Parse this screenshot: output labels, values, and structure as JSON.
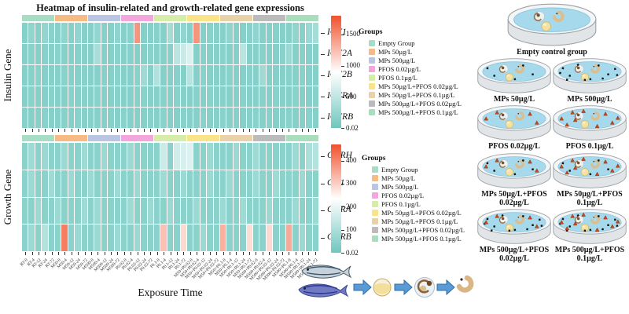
{
  "title": "Heatmap of insulin-related and growth-related gene expressions",
  "xlabel": "Exposure Time",
  "colors": {
    "heat_low": "#6FC7BF",
    "heat_mid": "#FFFFFF",
    "heat_high": "#F0512C",
    "tick": "#333333",
    "water": "#A6D9EB",
    "dish_rim": "#F4F5F6",
    "dish_base": "#E2E5E7",
    "dish_stroke": "#9AA0A4",
    "mp_particle": "#151515",
    "pfos_particle": "#C2481E",
    "pfos_edge": "#8A2D0E",
    "arrow": "#5B9BD5",
    "arrow_edge": "#2E6DA8"
  },
  "groups": {
    "heading": "Groups",
    "items": [
      {
        "label": "Empty Group",
        "color": "#A8DCC4"
      },
      {
        "label": "MPs 50µg/L",
        "color": "#F8BA84"
      },
      {
        "label": "MPs 500µg/L",
        "color": "#B9C5E2"
      },
      {
        "label": "PFOS 0.02µg/L",
        "color": "#F2A6DC"
      },
      {
        "label": "PFOS 0.1µg/L",
        "color": "#D6ECA9"
      },
      {
        "label": "MPs 50µg/L+PFOS 0.02µg/L",
        "color": "#FBE38A"
      },
      {
        "label": "MPs 50µg/L+PFOS 0.1µg/L",
        "color": "#E9D2A9"
      },
      {
        "label": "MPs 500µg/L+PFOS 0.02µg/L",
        "color": "#BBBBBB"
      },
      {
        "label": "MPs 500µg/L+PFOS 0.1µg/L",
        "color": "#A9DDBE"
      }
    ]
  },
  "chart_data": [
    {
      "type": "heatmap",
      "axis_label": "Insulin Gene",
      "rows": [
        "IGF1",
        "IGF2A",
        "IGF2B",
        "IGFRA",
        "IGFRB"
      ],
      "columns": [
        "RT-0",
        "RT-4",
        "RT-12",
        "RT-24",
        "RT-72",
        "M50-0",
        "M50-4",
        "M50-12",
        "M50-24",
        "M50-72",
        "M500-0",
        "M500-4",
        "M500-12",
        "M500-24",
        "M500-72",
        "P0.02-0",
        "P0.02-4",
        "P0.02-12",
        "P0.02-24",
        "P0.02-72",
        "P0.1-0",
        "P0.1-4",
        "P0.1-12",
        "P0.1-24",
        "P0.1-72",
        "M50+P0.02-0",
        "M50+P0.02-4",
        "M50+P0.02-12",
        "M50+P0.02-24",
        "M50+P0.02-72",
        "M50+P0.1-0",
        "M50+P0.1-4",
        "M50+P0.1-12",
        "M50+P0.1-24",
        "M50+P0.1-72",
        "M500+P0.02-0",
        "M500+P0.02-4",
        "M500+P0.02-12",
        "M500+P0.02-24",
        "M500+P0.02-72",
        "M500+P0.1-0",
        "M500+P0.1-4",
        "M500+P0.1-12",
        "M500+P0.1-24",
        "M500+P0.1-72"
      ],
      "colorbar": {
        "ticks": [
          "1500",
          "1000",
          "500",
          "0.02"
        ],
        "min": 0.02,
        "mid": 900,
        "max": 1800
      },
      "values": [
        [
          140,
          215,
          150,
          230,
          160,
          150,
          205,
          145,
          220,
          150,
          148,
          228,
          155,
          150,
          212,
          150,
          162,
          1450,
          142,
          150,
          156,
          148,
          330,
          152,
          216,
          150,
          1450,
          152,
          162,
          146,
          150,
          214,
          150,
          146,
          156,
          210,
          150,
          146,
          154,
          150,
          146,
          212,
          156,
          280,
          345
        ],
        [
          150,
          162,
          146,
          156,
          150,
          160,
          150,
          146,
          156,
          150,
          150,
          355,
          150,
          146,
          162,
          150,
          156,
          146,
          150,
          162,
          150,
          146,
          156,
          480,
          560,
          680,
          150,
          156,
          146,
          150,
          162,
          150,
          146,
          470,
          150,
          150,
          156,
          150,
          146,
          162,
          285,
          150,
          156,
          146,
          150
        ],
        [
          150,
          156,
          162,
          150,
          146,
          150,
          162,
          150,
          146,
          156,
          150,
          146,
          156,
          150,
          162,
          146,
          150,
          162,
          310,
          150,
          420,
          150,
          146,
          156,
          150,
          455,
          150,
          162,
          150,
          146,
          150,
          162,
          146,
          150,
          156,
          150,
          310,
          150,
          146,
          150,
          156,
          150,
          162,
          146,
          150
        ],
        [
          150,
          162,
          150,
          146,
          156,
          150,
          146,
          162,
          150,
          156,
          150,
          162,
          146,
          150,
          156,
          150,
          146,
          156,
          162,
          150,
          146,
          156,
          150,
          162,
          146,
          150,
          156,
          146,
          162,
          150,
          156,
          150,
          146,
          162,
          150,
          146,
          156,
          150,
          162,
          146,
          150,
          162,
          150,
          146,
          156
        ],
        [
          156,
          146,
          150,
          162,
          150,
          146,
          156,
          150,
          162,
          146,
          156,
          150,
          146,
          156,
          150,
          162,
          150,
          146,
          150,
          156,
          150,
          162,
          146,
          150,
          156,
          146,
          150,
          162,
          150,
          146,
          162,
          146,
          156,
          150,
          146,
          162,
          150,
          156,
          146,
          150,
          156,
          150,
          146,
          162,
          150
        ]
      ]
    },
    {
      "type": "heatmap",
      "axis_label": "Growth Gene",
      "rows": [
        "GHRH",
        "GH1",
        "GHRA",
        "GHRB"
      ],
      "columns": [
        "RT-0",
        "RT-4",
        "RT-12",
        "RT-24",
        "RT-72",
        "M50-0",
        "M50-4",
        "M50-12",
        "M50-24",
        "M50-72",
        "M500-0",
        "M500-4",
        "M500-12",
        "M500-24",
        "M500-72",
        "P0.02-0",
        "P0.02-4",
        "P0.02-12",
        "P0.02-24",
        "P0.02-72",
        "P0.1-0",
        "P0.1-4",
        "P0.1-12",
        "P0.1-24",
        "P0.1-72",
        "M50+P0.02-0",
        "M50+P0.02-4",
        "M50+P0.02-12",
        "M50+P0.02-24",
        "M50+P0.02-72",
        "M50+P0.1-0",
        "M50+P0.1-4",
        "M50+P0.1-12",
        "M50+P0.1-24",
        "M50+P0.1-72",
        "M500+P0.02-0",
        "M500+P0.02-4",
        "M500+P0.02-12",
        "M500+P0.02-24",
        "M500+P0.02-72",
        "M500+P0.1-0",
        "M500+P0.1-4",
        "M500+P0.1-12",
        "M500+P0.1-24",
        "M500+P0.1-72"
      ],
      "colorbar": {
        "ticks": [
          "400",
          "300",
          "200",
          "100",
          "0.02"
        ],
        "min": 0.02,
        "mid": 235,
        "max": 470
      },
      "values": [
        [
          45,
          78,
          48,
          75,
          45,
          48,
          75,
          45,
          48,
          78,
          45,
          48,
          75,
          45,
          48,
          45,
          75,
          48,
          45,
          48,
          45,
          150,
          48,
          160,
          170,
          180,
          48,
          45,
          75,
          48,
          45,
          48,
          75,
          45,
          48,
          78,
          48,
          45,
          48,
          45,
          48,
          75,
          45,
          100,
          112
        ],
        [
          48,
          75,
          45,
          48,
          78,
          45,
          48,
          75,
          48,
          45,
          75,
          45,
          48,
          45,
          78,
          48,
          45,
          75,
          45,
          48,
          45,
          78,
          45,
          48,
          75,
          45,
          48,
          45,
          75,
          48,
          45,
          75,
          48,
          45,
          48,
          75,
          45,
          48,
          78,
          45,
          48,
          45,
          75,
          48,
          45
        ],
        [
          45,
          48,
          75,
          45,
          48,
          75,
          45,
          48,
          45,
          78,
          45,
          75,
          48,
          45,
          48,
          45,
          78,
          45,
          48,
          75,
          48,
          45,
          75,
          48,
          45,
          48,
          75,
          45,
          48,
          45,
          75,
          48,
          45,
          78,
          45,
          48,
          45,
          75,
          45,
          48,
          48,
          75,
          45,
          48,
          75
        ],
        [
          48,
          75,
          45,
          112,
          48,
          45,
          410,
          48,
          75,
          45,
          48,
          75,
          45,
          48,
          75,
          45,
          48,
          75,
          48,
          45,
          48,
          320,
          45,
          48,
          285,
          48,
          45,
          75,
          48,
          45,
          340,
          48,
          45,
          48,
          280,
          45,
          48,
          285,
          48,
          45,
          350,
          48,
          75,
          45,
          48
        ]
      ]
    }
  ],
  "right_panel": {
    "rows": [
      {
        "dishes": [
          {
            "label": "Empty control group",
            "mps": 0,
            "pfos": 0
          }
        ]
      },
      {
        "dishes": [
          {
            "label": "MPs 50µg/L",
            "mps": 5,
            "pfos": 0
          },
          {
            "label": "MPs 500µg/L",
            "mps": 12,
            "pfos": 0
          }
        ]
      },
      {
        "dishes": [
          {
            "label": "PFOS 0.02µg/L",
            "mps": 0,
            "pfos": 4
          },
          {
            "label": "PFOS 0.1µg/L",
            "mps": 0,
            "pfos": 9
          }
        ]
      },
      {
        "dishes": [
          {
            "label": "MPs 50µg/L+PFOS 0.02µg/L",
            "mps": 5,
            "pfos": 4
          },
          {
            "label": "MPs 50µg/L+PFOS 0.1µg/L",
            "mps": 5,
            "pfos": 9
          }
        ]
      },
      {
        "dishes": [
          {
            "label": "MPs 500µg/L+PFOS 0.02µg/L",
            "mps": 12,
            "pfos": 4
          },
          {
            "label": "MPs 500µg/L+PFOS 0.1µg/L",
            "mps": 12,
            "pfos": 9
          }
        ]
      }
    ]
  },
  "pipeline": {
    "icons": [
      "adult-zebrafish-pair-icon",
      "arrow-right-icon",
      "fertilized-egg-icon",
      "arrow-right-icon",
      "embryo-icon",
      "arrow-right-icon",
      "larva-icon"
    ]
  }
}
